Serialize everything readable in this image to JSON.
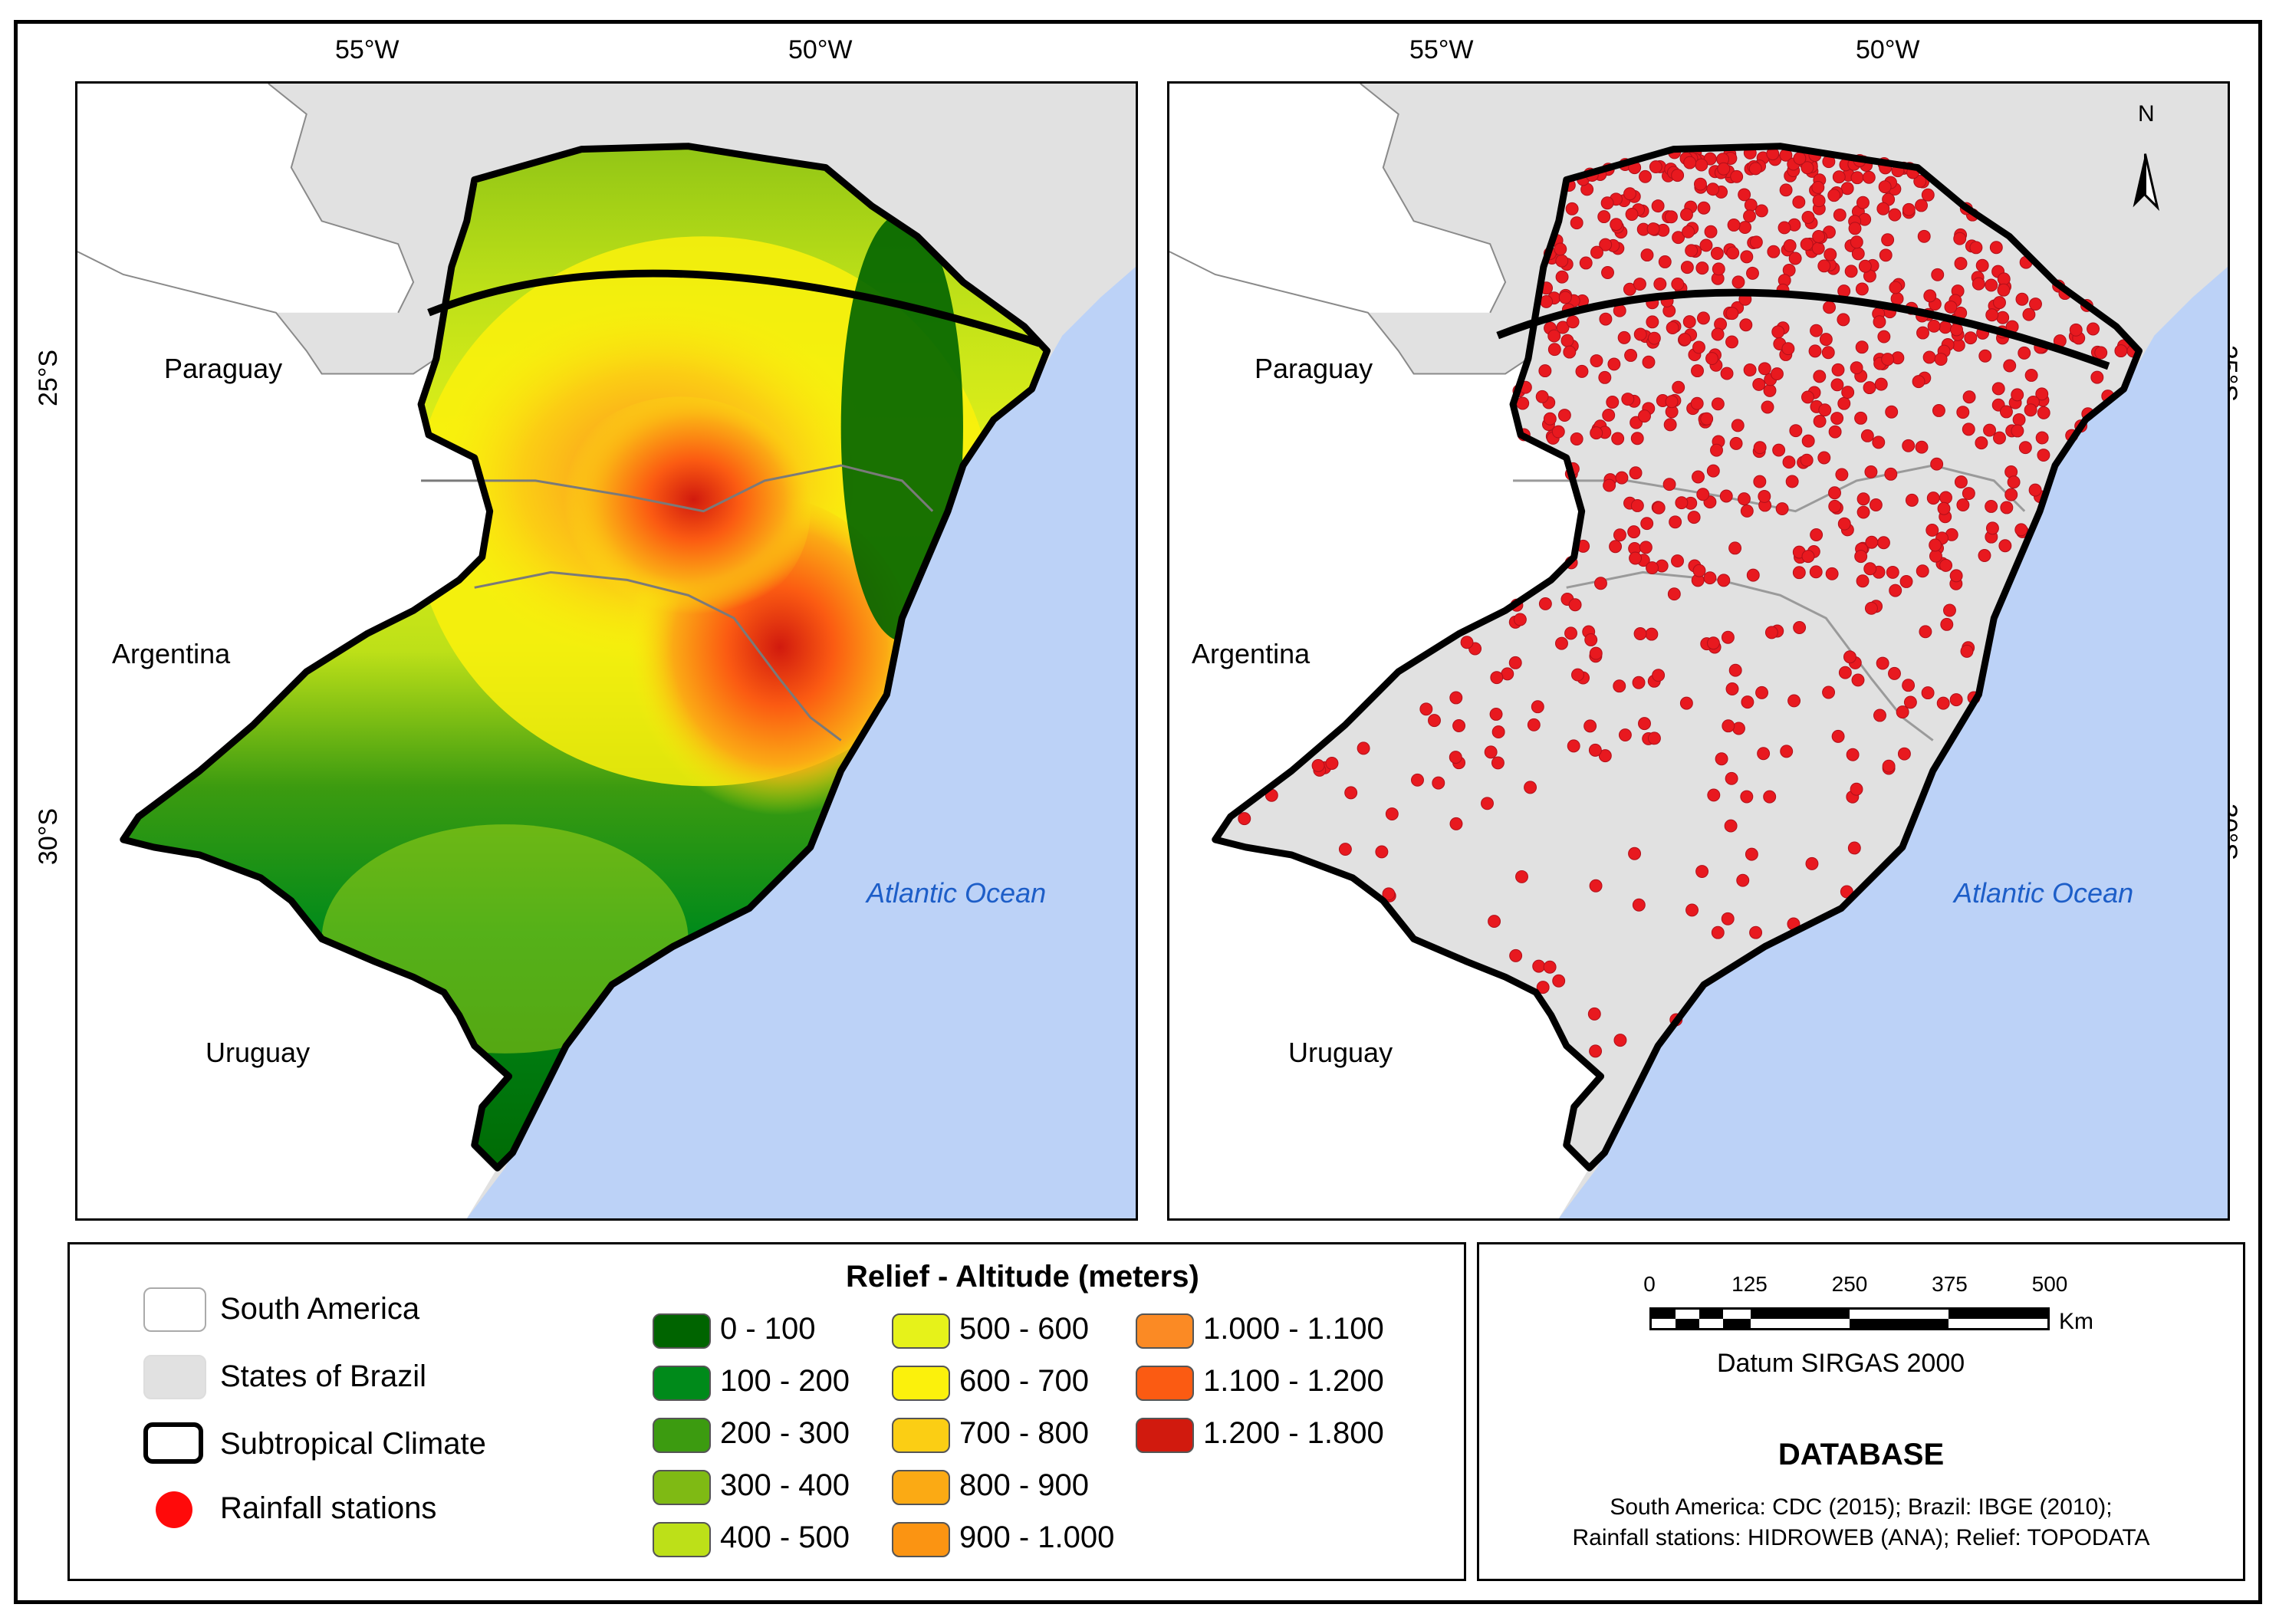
{
  "graticule": {
    "lon_55": "55°W",
    "lon_50": "50°W",
    "lat_25": "25°S",
    "lat_30": "30°S"
  },
  "map_labels": {
    "paraguay": "Paraguay",
    "argentina": "Argentina",
    "uruguay": "Uruguay",
    "ocean": "Atlantic Ocean"
  },
  "north_arrow": {
    "label": "N"
  },
  "colors": {
    "ocean": "#bcd2f7",
    "land_other": "#e1e1e1",
    "south_america": "#ffffff",
    "station": "#e8191f",
    "climate_line": "#000000"
  },
  "legend": {
    "general": [
      {
        "label": "South America",
        "symbol": "white-box"
      },
      {
        "label": "States of Brazil",
        "symbol": "grey-box"
      },
      {
        "label": "Subtropical Climate",
        "symbol": "black-outline-box"
      },
      {
        "label": "Rainfall stations",
        "symbol": "red-dot"
      }
    ],
    "relief_title": "Relief - Altitude (meters)",
    "relief_classes": [
      {
        "label": "0 - 100",
        "color": "#006400"
      },
      {
        "label": "100 - 200",
        "color": "#008a1a"
      },
      {
        "label": "200 - 300",
        "color": "#3c9b10"
      },
      {
        "label": "300 - 400",
        "color": "#7fba14"
      },
      {
        "label": "400 - 500",
        "color": "#bde018"
      },
      {
        "label": "500 - 600",
        "color": "#e6f21a"
      },
      {
        "label": "600 - 700",
        "color": "#fbf10c"
      },
      {
        "label": "700 - 800",
        "color": "#fbce14"
      },
      {
        "label": "800 - 900",
        "color": "#fbaa14"
      },
      {
        "label": "900 - 1.000",
        "color": "#fb9412"
      },
      {
        "label": "1.000 - 1.100",
        "color": "#fb8a24"
      },
      {
        "label": "1.100 - 1.200",
        "color": "#fb5b12"
      },
      {
        "label": "1.200 - 1.800",
        "color": "#d11a0e"
      }
    ]
  },
  "scale_bar": {
    "ticks": [
      "0",
      "125",
      "250",
      "375",
      "500"
    ],
    "unit": "Km",
    "datum": "Datum SIRGAS 2000"
  },
  "database": {
    "title": "DATABASE",
    "line1": "South America: CDC (2015); Brazil: IBGE (2010);",
    "line2": "Rainfall stations: HIDROWEB (ANA); Relief: TOPODATA"
  }
}
